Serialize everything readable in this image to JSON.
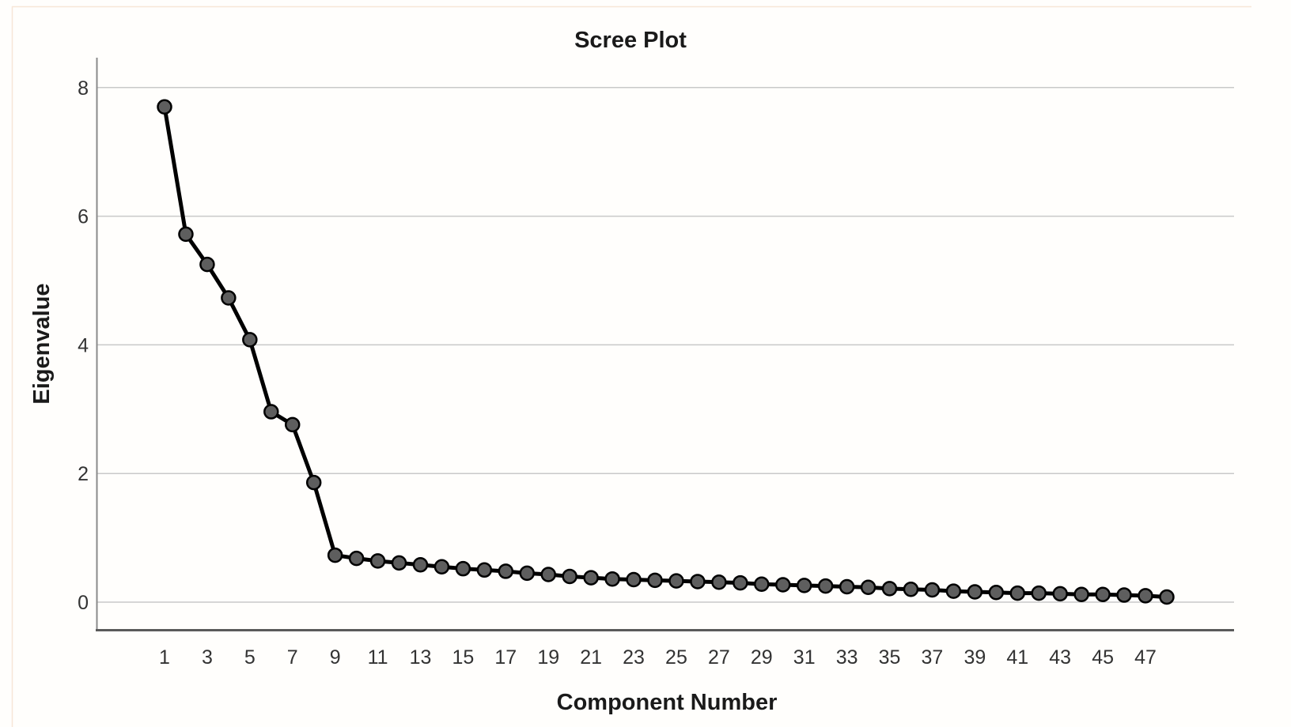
{
  "chart_data": {
    "type": "line",
    "title": "Scree Plot",
    "xlabel": "Component Number",
    "ylabel": "Eigenvalue",
    "x": [
      1,
      2,
      3,
      4,
      5,
      6,
      7,
      8,
      9,
      10,
      11,
      12,
      13,
      14,
      15,
      16,
      17,
      18,
      19,
      20,
      21,
      22,
      23,
      24,
      25,
      26,
      27,
      28,
      29,
      30,
      31,
      32,
      33,
      34,
      35,
      36,
      37,
      38,
      39,
      40,
      41,
      42,
      43,
      44,
      45,
      46,
      47,
      48
    ],
    "values": [
      7.7,
      5.72,
      5.25,
      4.73,
      4.08,
      2.96,
      2.76,
      1.86,
      0.73,
      0.68,
      0.64,
      0.61,
      0.58,
      0.55,
      0.52,
      0.5,
      0.48,
      0.45,
      0.43,
      0.4,
      0.38,
      0.36,
      0.35,
      0.34,
      0.33,
      0.32,
      0.31,
      0.3,
      0.28,
      0.27,
      0.26,
      0.25,
      0.24,
      0.23,
      0.21,
      0.2,
      0.19,
      0.17,
      0.16,
      0.15,
      0.14,
      0.14,
      0.13,
      0.12,
      0.12,
      0.11,
      0.1,
      0.08
    ],
    "x_ticks": [
      1,
      3,
      5,
      7,
      9,
      11,
      13,
      15,
      17,
      19,
      21,
      23,
      25,
      27,
      29,
      31,
      33,
      35,
      37,
      39,
      41,
      43,
      45,
      47
    ],
    "y_ticks": [
      0,
      2,
      4,
      6,
      8
    ],
    "ylim": [
      -0.43,
      8.46
    ],
    "xlim": [
      -2.2,
      51.2
    ],
    "grid": "horizontal-only",
    "legend": "none",
    "marker": "circle",
    "colors": {
      "line": "#000000",
      "marker_fill": "#5e5e5e",
      "marker_stroke": "#000000",
      "grid": "#c9c9c9",
      "y_axis": "#8a8a8a",
      "x_axis_frame": "#5a5a5a",
      "tick_text": "#333333",
      "label_text": "#1a1a1a",
      "panel_border": "#f8e6d7",
      "background": "#fffefc"
    }
  }
}
